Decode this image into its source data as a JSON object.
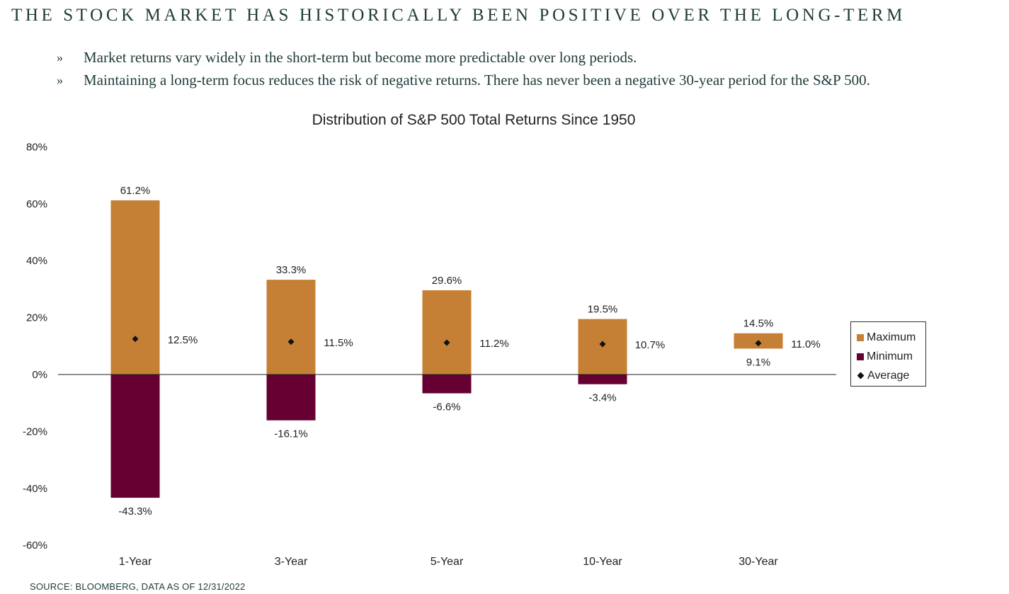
{
  "page": {
    "title": "THE STOCK MARKET HAS HISTORICALLY BEEN POSITIVE OVER THE LONG-TERM",
    "bullets": [
      "Market returns vary widely in the short-term but become more predictable over long periods.",
      "Maintaining a long-term focus reduces the risk of negative returns.  There has never been a negative 30-year period for the S&P 500."
    ],
    "bullet_marker": "»",
    "source": "SOURCE: BLOOMBERG, DATA AS OF 12/31/2022"
  },
  "chart_data": {
    "type": "bar",
    "title": "Distribution of S&P 500 Total Returns Since 1950",
    "categories": [
      "1-Year",
      "3-Year",
      "5-Year",
      "10-Year",
      "30-Year"
    ],
    "series": [
      {
        "name": "Maximum",
        "values": [
          61.2,
          33.3,
          29.6,
          19.5,
          14.5
        ],
        "labels": [
          "61.2%",
          "33.3%",
          "29.6%",
          "19.5%",
          "14.5%"
        ],
        "color": "#c58035"
      },
      {
        "name": "Minimum",
        "values": [
          -43.3,
          -16.1,
          -6.6,
          -3.4,
          9.1
        ],
        "labels": [
          "-43.3%",
          "-16.1%",
          "-6.6%",
          "-3.4%",
          "9.1%"
        ],
        "color": "#660033"
      },
      {
        "name": "Average",
        "values": [
          12.5,
          11.5,
          11.2,
          10.7,
          11.0
        ],
        "labels": [
          "12.5%",
          "11.5%",
          "11.2%",
          "10.7%",
          "11.0%"
        ],
        "color": "#111111"
      }
    ],
    "y_ticks": [
      "80%",
      "60%",
      "40%",
      "20%",
      "0%",
      "-20%",
      "-40%",
      "-60%"
    ],
    "ylim": [
      -60,
      80
    ],
    "legend_position": "right",
    "grid": false
  }
}
